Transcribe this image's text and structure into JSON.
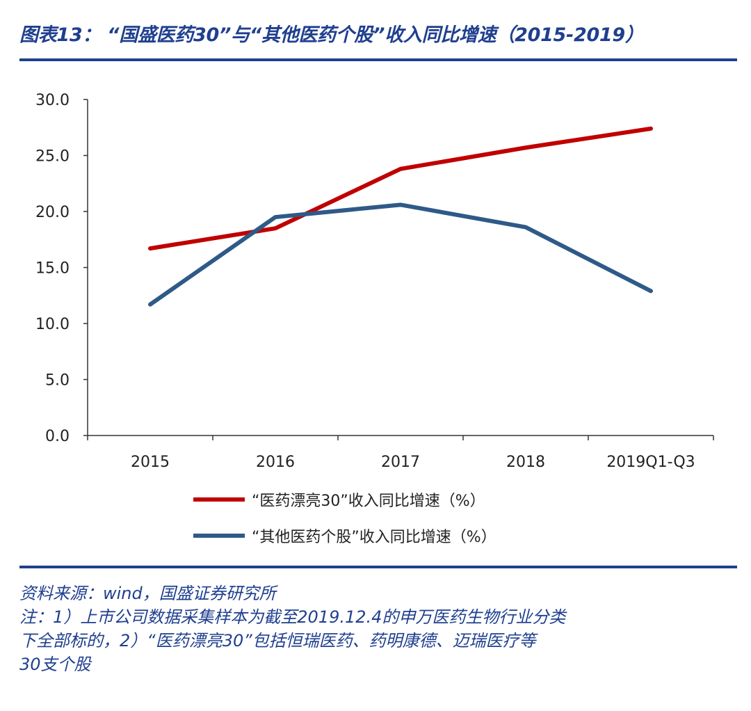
{
  "header": {
    "title": "图表13： “国盛医药30”与“其他医药个股”收入同比增速（2015-2019）"
  },
  "colors": {
    "brand": "#1f3f8f",
    "series_red": "#c00000",
    "series_blue": "#2e5a88"
  },
  "chart_data": {
    "type": "line",
    "title": "",
    "xlabel": "",
    "ylabel": "",
    "categories": [
      "2015",
      "2016",
      "2017",
      "2018",
      "2019Q1-Q3"
    ],
    "yticks": [
      "0.0",
      "5.0",
      "10.0",
      "15.0",
      "20.0",
      "25.0",
      "30.0"
    ],
    "ylim": [
      0,
      30
    ],
    "grid": false,
    "legend_position": "bottom",
    "series": [
      {
        "name": "“医药漂亮30”收入同比增速（%）",
        "color": "#c00000",
        "values": [
          16.7,
          18.5,
          23.8,
          25.7,
          27.4
        ]
      },
      {
        "name": "“其他医药个股”收入同比增速（%）",
        "color": "#2e5a88",
        "values": [
          11.7,
          19.5,
          20.6,
          18.6,
          12.9
        ]
      }
    ]
  },
  "footer": {
    "source": "资料来源：wind，国盛证券研究所",
    "note_line1": "注：1）上市公司数据采集样本为截至2019.12.4的申万医药生物行业分类",
    "note_line2": "下全部标的，2）“医药漂亮30”包括恒瑞医药、药明康德、迈瑞医疗等",
    "note_line3": "30支个股"
  }
}
